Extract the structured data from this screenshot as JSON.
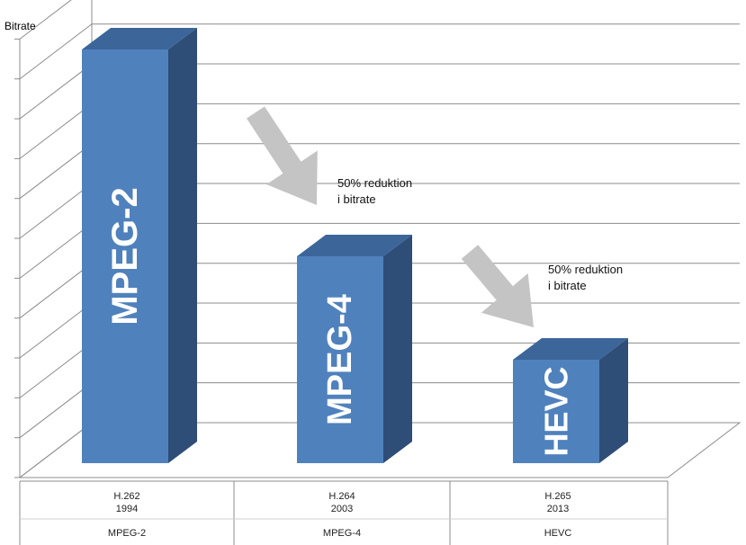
{
  "chart_data": {
    "type": "bar",
    "ylabel": "Bitrate",
    "categories": [
      "MPEG-2",
      "MPEG-4",
      "HEVC"
    ],
    "standards": [
      "H.262",
      "H.264",
      "H.265"
    ],
    "years": [
      "1994",
      "2003",
      "2013"
    ],
    "values": [
      100,
      50,
      25
    ],
    "bar_labels": [
      "MPEG-2",
      "MPEG-4",
      "HEVC"
    ],
    "ylim": [
      0,
      106
    ],
    "grid": true,
    "annotations": [
      {
        "line1": "50% reduktion",
        "line2": "i bitrate"
      },
      {
        "line1": "50% reduktion",
        "line2": "i bitrate"
      }
    ],
    "colors": {
      "bar_front": "#4f81bd",
      "bar_side": "#2e4d77",
      "bar_top": "#3c669a",
      "arrow": "#c4c4c4",
      "grid": "#8c8c8c"
    }
  }
}
